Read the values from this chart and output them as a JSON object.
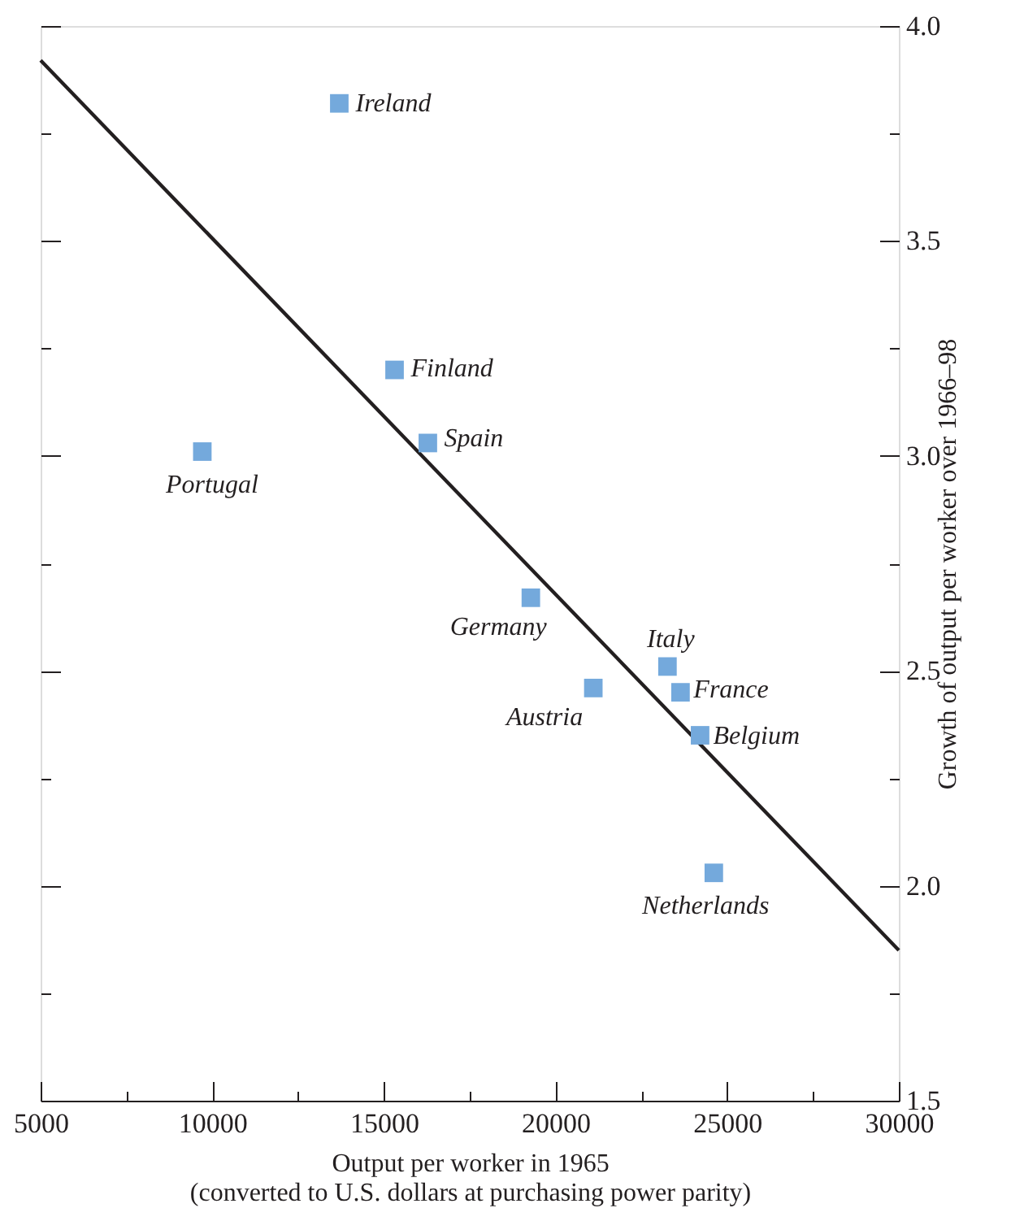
{
  "chart_data": {
    "type": "scatter",
    "xlabel": "Output per worker in 1965\n(converted to U.S. dollars at purchasing power parity)",
    "ylabel": "Growth of output per worker over 1966–98",
    "xlim": [
      5000,
      30000
    ],
    "xticks": [
      5000,
      {
        "value": 7500,
        "label": null
      },
      10000,
      {
        "value": 12500,
        "label": null
      },
      15000,
      {
        "value": 17500,
        "label": null
      },
      20000,
      {
        "value": 22500,
        "label": null
      },
      25000,
      {
        "value": 27500,
        "label": null
      },
      30000
    ],
    "ylim": [
      1.5,
      4.0
    ],
    "yticks": [
      {
        "value": 1.5,
        "label": "1.5"
      },
      {
        "value": 1.75,
        "label": null
      },
      {
        "value": 2.0,
        "label": "2.0"
      },
      {
        "value": 2.25,
        "label": null
      },
      {
        "value": 2.5,
        "label": "2.5"
      },
      {
        "value": 2.75,
        "label": null
      },
      {
        "value": 3.0,
        "label": "3.0"
      },
      {
        "value": 3.25,
        "label": null
      },
      {
        "value": 3.5,
        "label": "3.5"
      },
      {
        "value": 3.75,
        "label": null
      },
      {
        "value": 4.0,
        "label": "4.0"
      }
    ],
    "grid": false,
    "series": [
      {
        "type": "line",
        "color": "#231f20",
        "line_style": "solid",
        "x": [
          5000,
          30000
        ],
        "values": [
          3.92,
          1.85
        ]
      },
      {
        "marker": "square",
        "color": "#74a9dc",
        "x": [
          13700,
          15310,
          16280,
          9710,
          19280,
          23260,
          21100,
          23640,
          24210,
          24610
        ],
        "values": [
          3.82,
          3.2,
          3.03,
          3.01,
          2.67,
          2.51,
          2.46,
          2.45,
          2.35,
          2.03
        ]
      }
    ],
    "annotations": [
      {
        "text": "Ireland",
        "x": 13700,
        "y": 3.82
      },
      {
        "text": "Finland",
        "x": 15310,
        "y": 3.2
      },
      {
        "text": "Spain",
        "x": 16280,
        "y": 3.03
      },
      {
        "text": "Portugal",
        "x": 9710,
        "y": 3.01
      },
      {
        "text": "Germany",
        "x": 19280,
        "y": 2.67
      },
      {
        "text": "Italy",
        "x": 23260,
        "y": 2.51
      },
      {
        "text": "Austria",
        "x": 21100,
        "y": 2.46
      },
      {
        "text": "France",
        "x": 23640,
        "y": 2.45
      },
      {
        "text": "Belgium",
        "x": 24210,
        "y": 2.35
      },
      {
        "text": "Netherlands",
        "x": 24610,
        "y": 2.03
      }
    ]
  }
}
